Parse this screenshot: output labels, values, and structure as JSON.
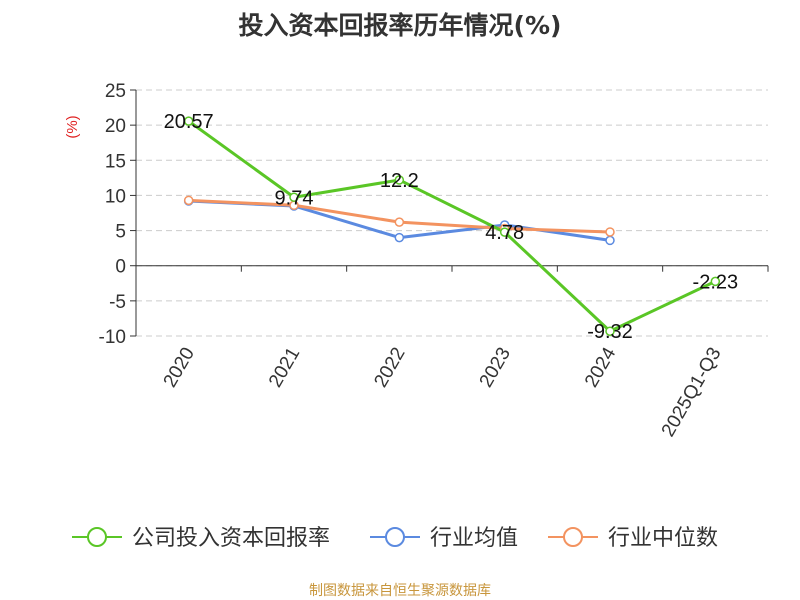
{
  "chart_data": {
    "type": "line",
    "title": "投入资本回报率历年情况(%)",
    "ylabel": "(%)",
    "categories": [
      "2020",
      "2021",
      "2022",
      "2023",
      "2024",
      "2025Q1-Q3"
    ],
    "ylim": [
      -10,
      25
    ],
    "yticks": [
      "25",
      "20",
      "15",
      "10",
      "5",
      "0",
      "-5",
      "-10"
    ],
    "grid": true,
    "legend_position": "bottom",
    "series": [
      {
        "name": "公司投入资本回报率",
        "color": "#5ac626",
        "values": [
          20.57,
          9.74,
          12.2,
          4.78,
          -9.32,
          -2.23
        ],
        "labels": [
          "20.57",
          "9.74",
          "12.2",
          "4.78",
          "-9.32",
          "-2.23"
        ]
      },
      {
        "name": "行业均值",
        "color": "#5b8ae0",
        "values": [
          9.2,
          8.5,
          4.0,
          5.8,
          3.6,
          null
        ]
      },
      {
        "name": "行业中位数",
        "color": "#f39360",
        "values": [
          9.3,
          8.6,
          6.2,
          5.3,
          4.8,
          null
        ]
      }
    ]
  },
  "source": "制图数据来自恒生聚源数据库"
}
